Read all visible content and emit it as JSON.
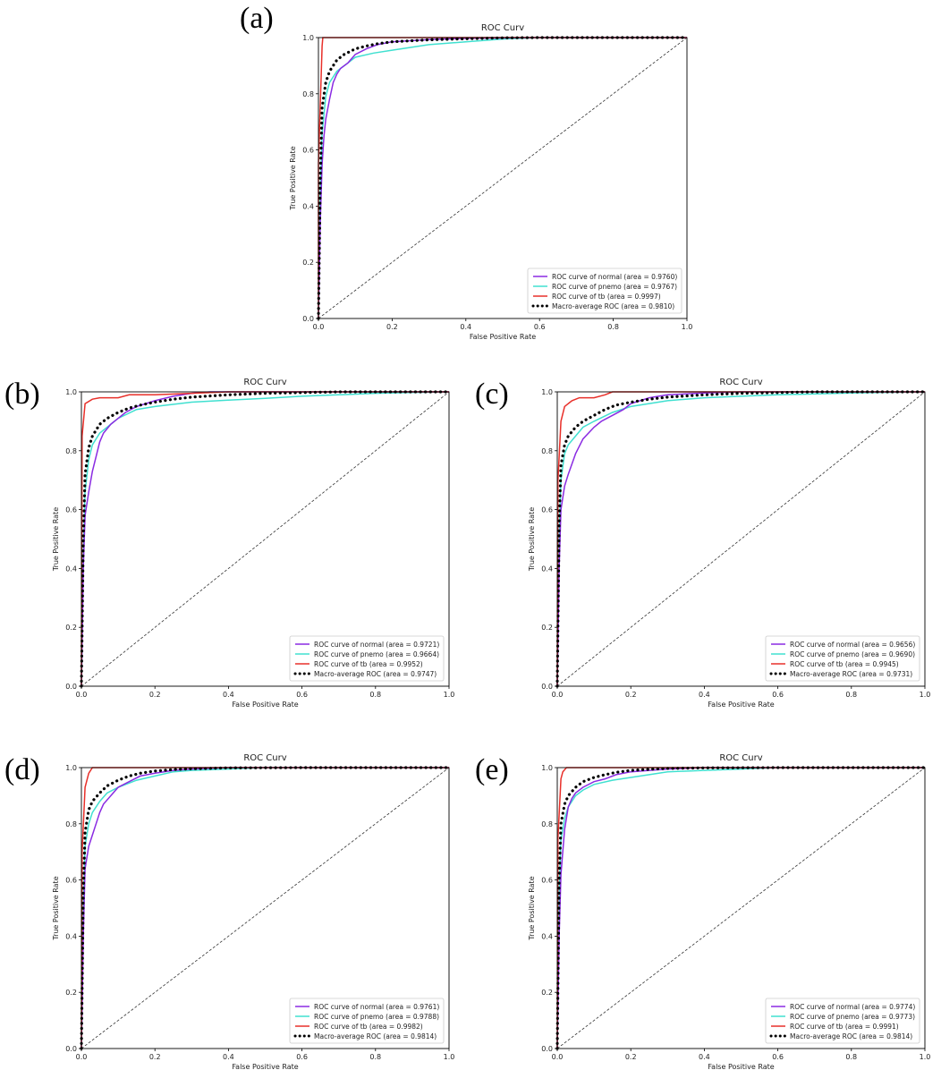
{
  "colors": {
    "normal": "#8a2be2",
    "pnemo": "#40e0d0",
    "tb": "#e8302a",
    "macro": "#000000",
    "diagonal": "#333333"
  },
  "chart_data": [
    {
      "panel_label": "(a)",
      "type": "line",
      "title": "ROC Curv",
      "xlabel": "False Positive Rate",
      "ylabel": "True Positive Rate",
      "xlim": [
        0,
        1
      ],
      "ylim": [
        0,
        1
      ],
      "xticks": [
        "0.0",
        "0.2",
        "0.4",
        "0.6",
        "0.8",
        "1.0"
      ],
      "yticks": [
        "0.0",
        "0.2",
        "0.4",
        "0.6",
        "0.8",
        "1.0"
      ],
      "legend_position": "lower-right",
      "series": [
        {
          "name": "ROC curve of normal (area = 0.9760)",
          "key": "normal",
          "style": "solid",
          "x": [
            0,
            0.005,
            0.01,
            0.015,
            0.02,
            0.03,
            0.04,
            0.05,
            0.06,
            0.08,
            0.1,
            0.13,
            0.16,
            0.2,
            0.3,
            0.4,
            0.6,
            1.0
          ],
          "y": [
            0,
            0.35,
            0.55,
            0.65,
            0.71,
            0.78,
            0.84,
            0.87,
            0.89,
            0.91,
            0.94,
            0.96,
            0.975,
            0.985,
            0.993,
            0.997,
            1.0,
            1.0
          ]
        },
        {
          "name": "ROC curve of pnemo (area = 0.9767)",
          "key": "pnemo",
          "style": "solid",
          "x": [
            0,
            0.005,
            0.01,
            0.02,
            0.03,
            0.05,
            0.08,
            0.1,
            0.15,
            0.2,
            0.25,
            0.3,
            0.4,
            0.5,
            0.6,
            1.0
          ],
          "y": [
            0,
            0.45,
            0.66,
            0.79,
            0.84,
            0.88,
            0.91,
            0.93,
            0.945,
            0.955,
            0.965,
            0.975,
            0.985,
            0.995,
            1.0,
            1.0
          ]
        },
        {
          "name": "ROC curve of tb (area = 0.9997)",
          "key": "tb",
          "style": "solid",
          "x": [
            0,
            0.0,
            0.01,
            0.012,
            1.0
          ],
          "y": [
            0,
            0.55,
            0.97,
            1.0,
            1.0
          ]
        },
        {
          "name": "Macro-average ROC (area = 0.9810)",
          "key": "macro",
          "style": "dotted",
          "x": [
            0,
            0.005,
            0.01,
            0.02,
            0.03,
            0.05,
            0.07,
            0.1,
            0.13,
            0.16,
            0.2,
            0.3,
            0.4,
            0.5,
            0.6,
            1.0
          ],
          "y": [
            0,
            0.5,
            0.75,
            0.84,
            0.88,
            0.92,
            0.94,
            0.96,
            0.97,
            0.978,
            0.985,
            0.992,
            0.996,
            0.999,
            1.0,
            1.0
          ]
        }
      ]
    },
    {
      "panel_label": "(b)",
      "type": "line",
      "title": "ROC Curv",
      "xlabel": "False Positive Rate",
      "ylabel": "True Positive Rate",
      "xlim": [
        0,
        1
      ],
      "ylim": [
        0,
        1
      ],
      "xticks": [
        "0.0",
        "0.2",
        "0.4",
        "0.6",
        "0.8",
        "1.0"
      ],
      "yticks": [
        "0.0",
        "0.2",
        "0.4",
        "0.6",
        "0.8",
        "1.0"
      ],
      "legend_position": "lower-right",
      "series": [
        {
          "name": "ROC curve of normal (area = 0.9721)",
          "key": "normal",
          "style": "solid",
          "x": [
            0,
            0.005,
            0.01,
            0.02,
            0.03,
            0.04,
            0.05,
            0.06,
            0.08,
            0.1,
            0.12,
            0.15,
            0.2,
            0.25,
            0.3,
            0.35,
            0.5,
            1.0
          ],
          "y": [
            0,
            0.4,
            0.58,
            0.66,
            0.73,
            0.78,
            0.83,
            0.86,
            0.89,
            0.91,
            0.93,
            0.95,
            0.97,
            0.985,
            0.995,
            1.0,
            1.0,
            1.0
          ]
        },
        {
          "name": "ROC curve of pnemo (area = 0.9664)",
          "key": "pnemo",
          "style": "solid",
          "x": [
            0,
            0.005,
            0.01,
            0.02,
            0.03,
            0.05,
            0.07,
            0.1,
            0.15,
            0.2,
            0.3,
            0.4,
            0.5,
            0.6,
            0.7,
            0.8,
            0.9,
            1.0
          ],
          "y": [
            0,
            0.45,
            0.66,
            0.77,
            0.82,
            0.86,
            0.88,
            0.91,
            0.94,
            0.95,
            0.965,
            0.972,
            0.978,
            0.985,
            0.99,
            0.995,
            0.998,
            1.0
          ]
        },
        {
          "name": "ROC curve of tb (area = 0.9952)",
          "key": "tb",
          "style": "solid",
          "x": [
            0,
            0.002,
            0.01,
            0.03,
            0.05,
            0.1,
            0.13,
            0.2,
            0.3,
            0.4,
            1.0
          ],
          "y": [
            0,
            0.85,
            0.96,
            0.975,
            0.98,
            0.98,
            0.99,
            0.99,
            0.995,
            1.0,
            1.0
          ]
        },
        {
          "name": "Macro-average ROC (area = 0.9747)",
          "key": "macro",
          "style": "dotted",
          "x": [
            0,
            0.005,
            0.01,
            0.02,
            0.03,
            0.05,
            0.07,
            0.1,
            0.13,
            0.16,
            0.2,
            0.25,
            0.3,
            0.4,
            0.5,
            0.7,
            1.0
          ],
          "y": [
            0,
            0.5,
            0.72,
            0.81,
            0.85,
            0.89,
            0.91,
            0.93,
            0.945,
            0.955,
            0.965,
            0.975,
            0.982,
            0.99,
            0.995,
            1.0,
            1.0
          ]
        }
      ]
    },
    {
      "panel_label": "(c)",
      "type": "line",
      "title": "ROC Curv",
      "xlabel": "False Positive Rate",
      "ylabel": "True Positive Rate",
      "xlim": [
        0,
        1
      ],
      "ylim": [
        0,
        1
      ],
      "xticks": [
        "0.0",
        "0.2",
        "0.4",
        "0.6",
        "0.8",
        "1.0"
      ],
      "yticks": [
        "0.0",
        "0.2",
        "0.4",
        "0.6",
        "0.8",
        "1.0"
      ],
      "legend_position": "lower-right",
      "series": [
        {
          "name": "ROC curve of normal (area = 0.9656)",
          "key": "normal",
          "style": "solid",
          "x": [
            0,
            0.005,
            0.01,
            0.02,
            0.03,
            0.05,
            0.07,
            0.1,
            0.12,
            0.15,
            0.18,
            0.2,
            0.25,
            0.3,
            0.4,
            0.5,
            1.0
          ],
          "y": [
            0,
            0.4,
            0.6,
            0.68,
            0.72,
            0.79,
            0.84,
            0.88,
            0.9,
            0.92,
            0.94,
            0.96,
            0.98,
            0.99,
            0.996,
            1.0,
            1.0
          ]
        },
        {
          "name": "ROC curve of pnemo (area = 0.9690)",
          "key": "pnemo",
          "style": "solid",
          "x": [
            0,
            0.005,
            0.01,
            0.02,
            0.03,
            0.05,
            0.07,
            0.1,
            0.15,
            0.2,
            0.3,
            0.4,
            0.5,
            0.6,
            0.8,
            1.0
          ],
          "y": [
            0,
            0.5,
            0.7,
            0.79,
            0.82,
            0.85,
            0.88,
            0.9,
            0.93,
            0.95,
            0.97,
            0.98,
            0.985,
            0.99,
            0.996,
            1.0
          ]
        },
        {
          "name": "ROC curve of tb (area = 0.9945)",
          "key": "tb",
          "style": "solid",
          "x": [
            0,
            0.002,
            0.01,
            0.02,
            0.04,
            0.06,
            0.1,
            0.13,
            0.15,
            0.3,
            1.0
          ],
          "y": [
            0,
            0.7,
            0.9,
            0.95,
            0.97,
            0.98,
            0.98,
            0.99,
            1.0,
            1.0,
            1.0
          ]
        },
        {
          "name": "Macro-average ROC (area = 0.9731)",
          "key": "macro",
          "style": "dotted",
          "x": [
            0,
            0.005,
            0.01,
            0.02,
            0.03,
            0.05,
            0.07,
            0.1,
            0.13,
            0.16,
            0.2,
            0.25,
            0.3,
            0.4,
            0.5,
            0.7,
            1.0
          ],
          "y": [
            0,
            0.55,
            0.75,
            0.82,
            0.85,
            0.88,
            0.9,
            0.92,
            0.94,
            0.955,
            0.965,
            0.975,
            0.982,
            0.99,
            0.995,
            1.0,
            1.0
          ]
        }
      ]
    },
    {
      "panel_label": "(d)",
      "type": "line",
      "title": "ROC Curv",
      "xlabel": "False Positive Rate",
      "ylabel": "True Positive Rate",
      "xlim": [
        0,
        1
      ],
      "ylim": [
        0,
        1
      ],
      "xticks": [
        "0.0",
        "0.2",
        "0.4",
        "0.6",
        "0.8",
        "1.0"
      ],
      "yticks": [
        "0.0",
        "0.2",
        "0.4",
        "0.6",
        "0.8",
        "1.0"
      ],
      "legend_position": "lower-right",
      "series": [
        {
          "name": "ROC curve of normal (area = 0.9761)",
          "key": "normal",
          "style": "solid",
          "x": [
            0,
            0.005,
            0.01,
            0.02,
            0.03,
            0.04,
            0.05,
            0.06,
            0.08,
            0.1,
            0.13,
            0.16,
            0.2,
            0.25,
            0.3,
            0.4,
            1.0
          ],
          "y": [
            0,
            0.4,
            0.64,
            0.72,
            0.76,
            0.8,
            0.84,
            0.87,
            0.9,
            0.93,
            0.95,
            0.97,
            0.98,
            0.99,
            0.995,
            1.0,
            1.0
          ]
        },
        {
          "name": "ROC curve of pnemo (area = 0.9788)",
          "key": "pnemo",
          "style": "solid",
          "x": [
            0,
            0.005,
            0.01,
            0.02,
            0.03,
            0.05,
            0.07,
            0.1,
            0.15,
            0.2,
            0.25,
            0.3,
            0.4,
            0.5,
            1.0
          ],
          "y": [
            0,
            0.5,
            0.72,
            0.8,
            0.84,
            0.88,
            0.91,
            0.93,
            0.955,
            0.97,
            0.985,
            0.99,
            0.995,
            1.0,
            1.0
          ]
        },
        {
          "name": "ROC curve of tb (area = 0.9982)",
          "key": "tb",
          "style": "solid",
          "x": [
            0,
            0.002,
            0.01,
            0.02,
            0.03,
            1.0
          ],
          "y": [
            0,
            0.7,
            0.93,
            0.98,
            1.0,
            1.0
          ]
        },
        {
          "name": "Macro-average ROC (area = 0.9814)",
          "key": "macro",
          "style": "dotted",
          "x": [
            0,
            0.005,
            0.01,
            0.02,
            0.03,
            0.05,
            0.07,
            0.1,
            0.13,
            0.16,
            0.2,
            0.25,
            0.3,
            0.4,
            0.6,
            1.0
          ],
          "y": [
            0,
            0.55,
            0.77,
            0.85,
            0.88,
            0.91,
            0.935,
            0.955,
            0.97,
            0.98,
            0.988,
            0.993,
            0.996,
            0.999,
            1.0,
            1.0
          ]
        }
      ]
    },
    {
      "panel_label": "(e)",
      "type": "line",
      "title": "ROC Curv",
      "xlabel": "False Positive Rate",
      "ylabel": "True Positive Rate",
      "xlim": [
        0,
        1
      ],
      "ylim": [
        0,
        1
      ],
      "xticks": [
        "0.0",
        "0.2",
        "0.4",
        "0.6",
        "0.8",
        "1.0"
      ],
      "yticks": [
        "0.0",
        "0.2",
        "0.4",
        "0.6",
        "0.8",
        "1.0"
      ],
      "legend_position": "lower-right",
      "series": [
        {
          "name": "ROC curve of normal (area = 0.9774)",
          "key": "normal",
          "style": "solid",
          "x": [
            0,
            0.005,
            0.01,
            0.02,
            0.03,
            0.04,
            0.05,
            0.07,
            0.1,
            0.13,
            0.16,
            0.2,
            0.25,
            0.3,
            0.4,
            1.0
          ],
          "y": [
            0,
            0.4,
            0.62,
            0.78,
            0.86,
            0.89,
            0.91,
            0.93,
            0.95,
            0.96,
            0.975,
            0.985,
            0.99,
            0.995,
            1.0,
            1.0
          ]
        },
        {
          "name": "ROC curve of pnemo (area = 0.9773)",
          "key": "pnemo",
          "style": "solid",
          "x": [
            0,
            0.005,
            0.01,
            0.02,
            0.03,
            0.05,
            0.07,
            0.1,
            0.15,
            0.2,
            0.25,
            0.3,
            0.4,
            0.5,
            0.6,
            1.0
          ],
          "y": [
            0,
            0.55,
            0.74,
            0.82,
            0.86,
            0.9,
            0.92,
            0.94,
            0.955,
            0.965,
            0.975,
            0.985,
            0.99,
            0.995,
            1.0,
            1.0
          ]
        },
        {
          "name": "ROC curve of tb (area = 0.9991)",
          "key": "tb",
          "style": "solid",
          "x": [
            0,
            0.002,
            0.01,
            0.015,
            0.025,
            1.0
          ],
          "y": [
            0,
            0.75,
            0.96,
            0.985,
            1.0,
            1.0
          ]
        },
        {
          "name": "Macro-average ROC (area = 0.9814)",
          "key": "macro",
          "style": "dotted",
          "x": [
            0,
            0.005,
            0.01,
            0.02,
            0.03,
            0.05,
            0.07,
            0.1,
            0.13,
            0.16,
            0.2,
            0.25,
            0.3,
            0.4,
            0.6,
            1.0
          ],
          "y": [
            0,
            0.6,
            0.8,
            0.87,
            0.9,
            0.93,
            0.95,
            0.965,
            0.975,
            0.983,
            0.99,
            0.994,
            0.997,
            0.999,
            1.0,
            1.0
          ]
        }
      ]
    }
  ]
}
